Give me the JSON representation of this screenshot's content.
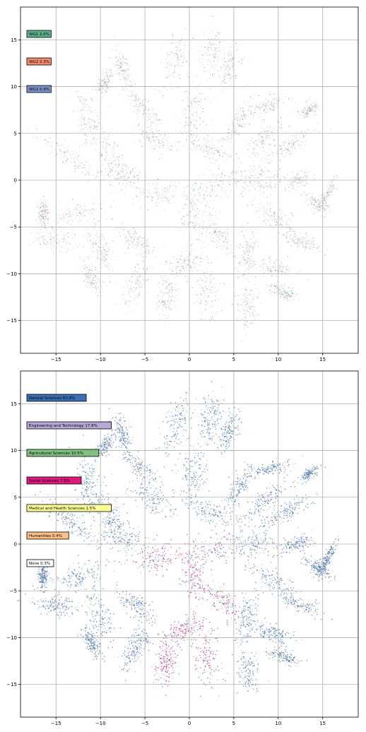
{
  "chart_data": [
    {
      "type": "scatter",
      "title": "",
      "xlabel": "",
      "ylabel": "",
      "xlim": [
        -19,
        19
      ],
      "ylim": [
        -18.5,
        18.5
      ],
      "xticks": [
        -15,
        -10,
        -5,
        0,
        5,
        10,
        15
      ],
      "yticks": [
        -15,
        -10,
        -5,
        0,
        5,
        10,
        15
      ],
      "grid": true,
      "legend_placement": "upper-left",
      "series": [
        {
          "name": "WG1 2.0%",
          "color": "#5fb08a"
        },
        {
          "name": "WG2 2.3%",
          "color": "#f28b6b"
        },
        {
          "name": "WG3 0.9%",
          "color": "#7b8fc8"
        }
      ],
      "background_color": "#d0d0d0"
    },
    {
      "type": "scatter",
      "title": "",
      "xlabel": "",
      "ylabel": "",
      "xlim": [
        -19,
        19
      ],
      "ylim": [
        -18.5,
        18.5
      ],
      "xticks": [
        -15,
        -10,
        -5,
        0,
        5,
        10,
        15
      ],
      "yticks": [
        -15,
        -10,
        -5,
        0,
        5,
        10,
        15
      ],
      "grid": true,
      "legend_placement": "upper-left",
      "series": [
        {
          "name": "Natural Sciences 63.8%",
          "color": "#3b6db3"
        },
        {
          "name": "Engineering and Technology 17.8%",
          "color": "#b8a8d6"
        },
        {
          "name": "Agricultural Sciences 10.5%",
          "color": "#80c080"
        },
        {
          "name": "Social Sciences 7.9%",
          "color": "#e0197f"
        },
        {
          "name": "Medical and Health Sciences 1.5%",
          "color": "#ffff99"
        },
        {
          "name": "Humanities 0.4%",
          "color": "#fdc086"
        },
        {
          "name": "None 0.3%",
          "color": "#ffffff"
        }
      ]
    }
  ]
}
